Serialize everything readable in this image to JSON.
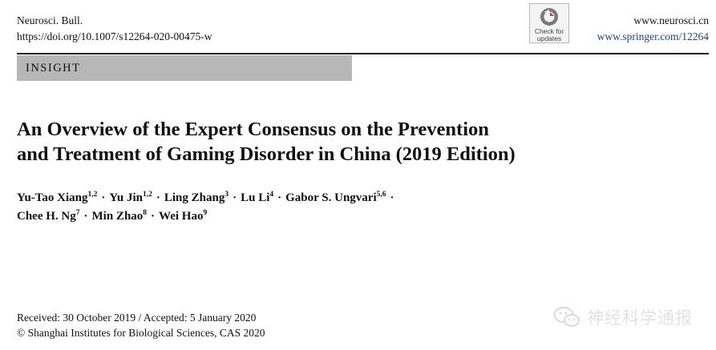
{
  "header": {
    "journal": "Neurosci. Bull.",
    "doi": "https://doi.org/10.1007/s12264-020-00475-w",
    "site_primary": "www.neurosci.cn",
    "site_secondary": "www.springer.com/12264"
  },
  "check_updates": {
    "line1": "Check for",
    "line2": "updates",
    "icon": "check-for-updates-icon"
  },
  "section_label": "INSIGHT",
  "title": {
    "line1": "An Overview of the Expert Consensus on the Prevention",
    "line2": "and Treatment of Gaming Disorder in China (2019 Edition)"
  },
  "authors": [
    {
      "name": "Yu-Tao Xiang",
      "aff": "1,2"
    },
    {
      "name": "Yu Jin",
      "aff": "1,2"
    },
    {
      "name": "Ling Zhang",
      "aff": "3"
    },
    {
      "name": "Lu Li",
      "aff": "4"
    },
    {
      "name": "Gabor S. Ungvari",
      "aff": "5,6"
    },
    {
      "name": "Chee H. Ng",
      "aff": "7"
    },
    {
      "name": "Min Zhao",
      "aff": "8"
    },
    {
      "name": "Wei Hao",
      "aff": "9"
    }
  ],
  "author_separator": "·",
  "dates": {
    "received_accepted": "Received: 30 October 2019 / Accepted: 5 January 2020",
    "copyright": "© Shanghai Institutes for Biological Sciences, CAS 2020"
  },
  "watermark": {
    "text": "神经科学通报",
    "icon": "wechat-icon",
    "color": "#e2e2e2"
  }
}
